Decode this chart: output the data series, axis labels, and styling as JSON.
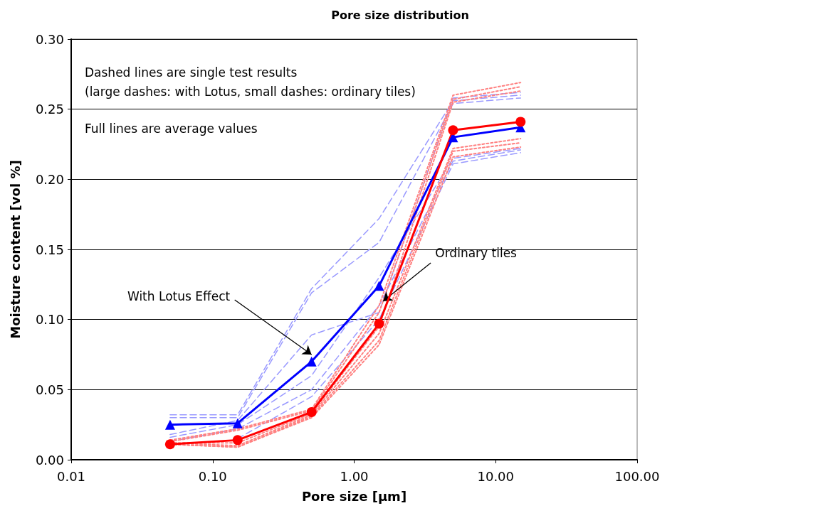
{
  "chart_data": {
    "type": "line",
    "title": "Pore size distribution",
    "xlabel": "Pore size [µm]",
    "ylabel": "Moisture content [vol %]",
    "log": "x",
    "grid": "y",
    "x": [
      0.05,
      0.15,
      0.5,
      1.5,
      5,
      15
    ],
    "xlim": [
      0.01,
      100
    ],
    "xticks": [
      {
        "value": 0.01,
        "label": "0.01"
      },
      {
        "value": 0.1,
        "label": "0.10"
      },
      {
        "value": 1,
        "label": "1.00"
      },
      {
        "value": 10,
        "label": "10.00"
      },
      {
        "value": 100,
        "label": "100.00"
      }
    ],
    "ylim": [
      0,
      0.3
    ],
    "yticks": [
      {
        "value": 0,
        "label": "0.00"
      },
      {
        "value": 0.05,
        "label": "0.05"
      },
      {
        "value": 0.1,
        "label": "0.10"
      },
      {
        "value": 0.15,
        "label": "0.15"
      },
      {
        "value": 0.2,
        "label": "0.20"
      },
      {
        "value": 0.25,
        "label": "0.25"
      },
      {
        "value": 0.3,
        "label": "0.30"
      }
    ],
    "series": [
      {
        "color": "#9999ff",
        "line_style": "dashed",
        "marker": "none",
        "values": [
          0.032,
          0.032,
          0.122,
          0.172,
          0.256,
          0.26
        ]
      },
      {
        "color": "#9999ff",
        "line_style": "dashed",
        "marker": "none",
        "values": [
          0.03,
          0.03,
          0.119,
          0.155,
          0.254,
          0.258
        ]
      },
      {
        "color": "#9999ff",
        "line_style": "dashed",
        "marker": "none",
        "values": [
          0.018,
          0.028,
          0.089,
          0.105,
          0.258,
          0.262
        ]
      },
      {
        "color": "#9999ff",
        "line_style": "dashed",
        "marker": "none",
        "values": [
          0.016,
          0.025,
          0.06,
          0.13,
          0.215,
          0.222
        ]
      },
      {
        "color": "#9999ff",
        "line_style": "dashed",
        "marker": "none",
        "values": [
          0.013,
          0.022,
          0.05,
          0.11,
          0.213,
          0.221
        ]
      },
      {
        "color": "#9999ff",
        "line_style": "dashed",
        "marker": "none",
        "values": [
          null,
          0.015,
          0.045,
          0.1,
          0.211,
          0.219
        ]
      },
      {
        "color": "#ff8080",
        "line_style": "dotted",
        "marker": "none",
        "values": [
          0.014,
          0.022,
          0.036,
          0.11,
          0.26,
          0.269
        ]
      },
      {
        "color": "#ff8080",
        "line_style": "dotted",
        "marker": "none",
        "values": [
          0.013,
          0.021,
          0.035,
          0.105,
          0.257,
          0.266
        ]
      },
      {
        "color": "#ff8080",
        "line_style": "dotted",
        "marker": "none",
        "values": [
          0.012,
          0.012,
          0.033,
          0.095,
          0.255,
          0.263
        ]
      },
      {
        "color": "#ff8080",
        "line_style": "dotted",
        "marker": "none",
        "values": [
          0.012,
          0.01,
          0.032,
          0.09,
          0.222,
          0.229
        ]
      },
      {
        "color": "#ff8080",
        "line_style": "dotted",
        "marker": "none",
        "values": [
          0.011,
          0.009,
          0.031,
          0.085,
          0.22,
          0.226
        ]
      },
      {
        "color": "#ff8080",
        "line_style": "dotted",
        "marker": "none",
        "values": [
          0.011,
          0.009,
          0.03,
          0.082,
          0.216,
          0.223
        ]
      },
      {
        "color": "#0000ff",
        "line_style": "solid",
        "marker": "triangle",
        "values": [
          0.025,
          0.026,
          0.07,
          0.124,
          0.23,
          0.237
        ]
      },
      {
        "color": "#ff0000",
        "line_style": "solid",
        "marker": "circle",
        "values": [
          0.011,
          0.014,
          0.034,
          0.097,
          0.235,
          0.241
        ]
      }
    ],
    "annotations": [
      "Dashed lines are single test results",
      "(large dashes: with Lotus, small dashes: ordinary tiles)",
      "Full lines are average values",
      {
        "text": "With Lotus Effect",
        "x": 0.5,
        "y": 0.075
      },
      {
        "text": "Ordinary tiles",
        "x": 1.6,
        "y": 0.113
      }
    ]
  }
}
